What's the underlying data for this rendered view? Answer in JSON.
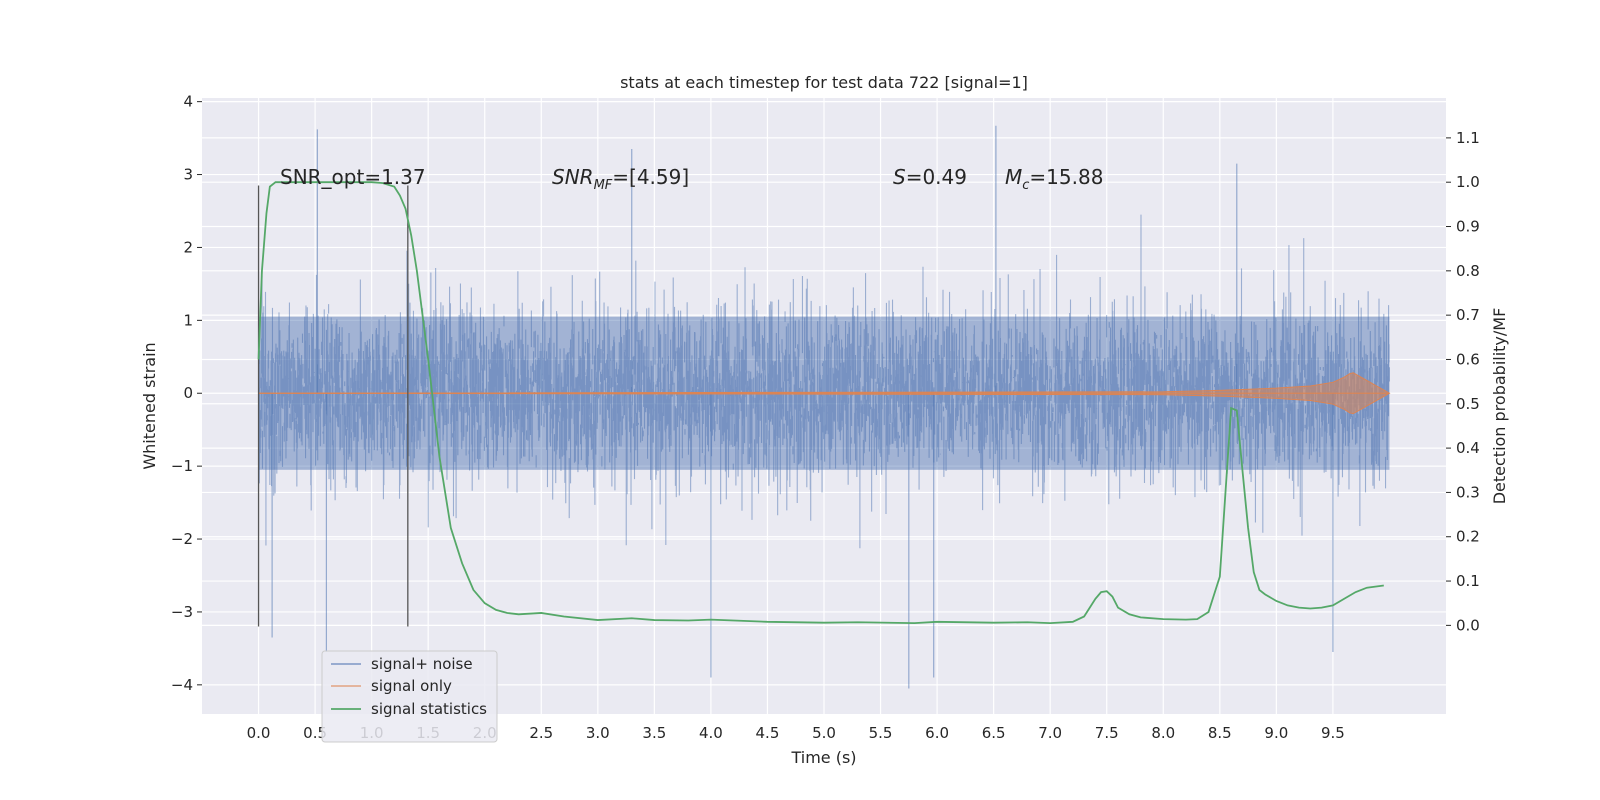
{
  "chart_data": {
    "type": "line",
    "title": "stats at each timestep for test data 722 [signal=1]",
    "xlabel": "Time (s)",
    "ylabel_left": "Whitened strain",
    "ylabel_right": "Detection probability/MF",
    "xlim": [
      -0.5,
      10.5
    ],
    "ylim_left": [
      -4.4,
      4.05
    ],
    "ylim_right": [
      -0.2,
      1.19
    ],
    "x_ticks": [
      "0.0",
      "0.5",
      "1.0",
      "1.5",
      "2.0",
      "2.5",
      "3.0",
      "3.5",
      "4.0",
      "4.5",
      "5.0",
      "5.5",
      "6.0",
      "6.5",
      "7.0",
      "7.5",
      "8.0",
      "8.5",
      "9.0",
      "9.5"
    ],
    "y_left_ticks": [
      "-4",
      "-3",
      "-2",
      "-1",
      "0",
      "1",
      "2",
      "3",
      "4"
    ],
    "y_right_ticks": [
      "0.0",
      "0.1",
      "0.2",
      "0.3",
      "0.4",
      "0.5",
      "0.6",
      "0.7",
      "0.8",
      "0.9",
      "1.0",
      "1.1"
    ],
    "grid": true,
    "legend_position": "lower-left",
    "annotations": {
      "snr_opt": "SNR_opt=1.37",
      "snr_mf": "SNR",
      "snr_mf_sub": "MF",
      "snr_mf_value": "=[4.59]",
      "s_label": "S",
      "s_value": "=0.49",
      "mc_label": "M",
      "mc_sub": "c",
      "mc_value": "=15.88"
    },
    "vertical_markers": [
      0.0,
      1.32
    ],
    "series": [
      {
        "name": "signal+ noise",
        "color": "#4c72b0",
        "noise_envelope": {
          "x_start": 0.0,
          "x_end": 10.0,
          "core_abs": 1.05,
          "typical_peak_abs": 2.3,
          "extreme_max": 3.7,
          "extreme_min": -4.05
        }
      },
      {
        "name": "signal only",
        "color": "#dd8452",
        "x": [
          0.0,
          8.0,
          8.5,
          9.0,
          9.3,
          9.5,
          9.6,
          9.65,
          9.68,
          10.0
        ],
        "amplitude": [
          0.0,
          0.02,
          0.04,
          0.07,
          0.1,
          0.15,
          0.22,
          0.27,
          0.28,
          0.0
        ]
      },
      {
        "name": "signal statistics",
        "color": "#55a868",
        "x": [
          0.0,
          0.03,
          0.07,
          0.1,
          0.15,
          0.2,
          0.3,
          0.5,
          0.7,
          0.9,
          1.0,
          1.1,
          1.2,
          1.25,
          1.3,
          1.35,
          1.4,
          1.45,
          1.5,
          1.6,
          1.7,
          1.8,
          1.9,
          2.0,
          2.1,
          2.2,
          2.3,
          2.5,
          2.7,
          3.0,
          3.3,
          3.5,
          3.8,
          4.0,
          4.5,
          5.0,
          5.3,
          5.8,
          6.0,
          6.5,
          6.8,
          7.0,
          7.2,
          7.3,
          7.4,
          7.45,
          7.5,
          7.55,
          7.6,
          7.7,
          7.8,
          8.0,
          8.2,
          8.3,
          8.4,
          8.5,
          8.55,
          8.6,
          8.65,
          8.7,
          8.75,
          8.8,
          8.85,
          8.9,
          9.0,
          9.1,
          9.2,
          9.3,
          9.4,
          9.5,
          9.6,
          9.7,
          9.8,
          9.95
        ],
        "y": [
          0.6,
          0.8,
          0.93,
          0.99,
          1.0,
          1.0,
          1.0,
          1.0,
          1.0,
          1.0,
          1.0,
          0.998,
          0.99,
          0.97,
          0.94,
          0.88,
          0.8,
          0.7,
          0.6,
          0.38,
          0.22,
          0.14,
          0.08,
          0.05,
          0.035,
          0.028,
          0.025,
          0.028,
          0.02,
          0.012,
          0.016,
          0.012,
          0.011,
          0.013,
          0.008,
          0.006,
          0.007,
          0.005,
          0.008,
          0.006,
          0.007,
          0.005,
          0.008,
          0.02,
          0.06,
          0.075,
          0.077,
          0.065,
          0.04,
          0.025,
          0.018,
          0.014,
          0.013,
          0.014,
          0.03,
          0.11,
          0.3,
          0.49,
          0.485,
          0.35,
          0.22,
          0.12,
          0.08,
          0.07,
          0.055,
          0.045,
          0.04,
          0.038,
          0.04,
          0.045,
          0.06,
          0.075,
          0.085,
          0.09
        ]
      }
    ]
  }
}
